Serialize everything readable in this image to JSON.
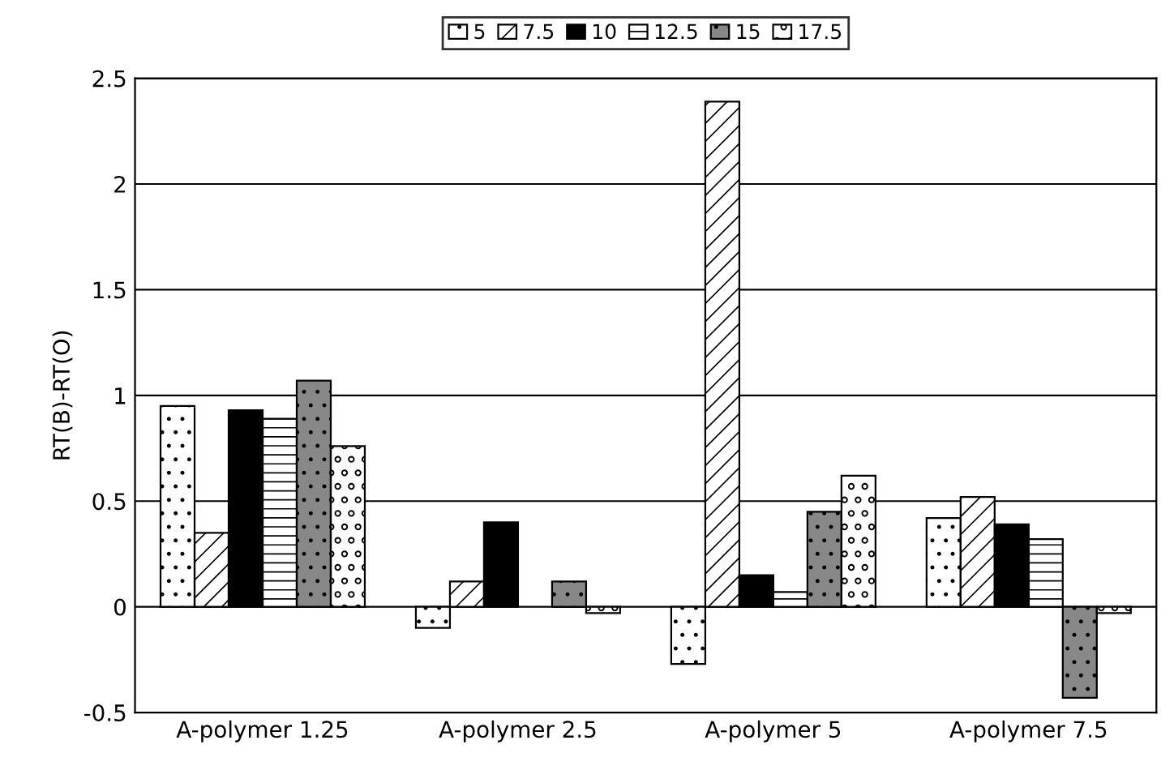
{
  "chart_data": {
    "type": "bar",
    "ylabel": "RT(B)-RT(O)",
    "categories": [
      "A-polymer 1.25",
      "A-polymer 2.5",
      "A-polymer 5",
      "A-polymer 7.5"
    ],
    "series": [
      {
        "name": "5",
        "color": "#ffffff",
        "values": [
          0.95,
          -0.1,
          -0.27,
          0.42
        ]
      },
      {
        "name": "7.5",
        "color": "#ffffff",
        "values": [
          0.35,
          0.12,
          2.39,
          0.52
        ]
      },
      {
        "name": "10",
        "color": "#000000",
        "values": [
          0.93,
          0.4,
          0.15,
          0.39
        ]
      },
      {
        "name": "12.5",
        "color": "#ffffff",
        "values": [
          0.89,
          null,
          0.07,
          0.32
        ]
      },
      {
        "name": "15",
        "color": "#888888",
        "values": [
          1.07,
          0.12,
          0.45,
          -0.43
        ]
      },
      {
        "name": "17.5",
        "color": "#ffffff",
        "values": [
          0.76,
          -0.03,
          0.62,
          -0.03
        ]
      }
    ],
    "ylim": [
      -0.5,
      2.5
    ],
    "yticks": [
      -0.5,
      0,
      0.5,
      1,
      1.5,
      2,
      2.5
    ],
    "grid": "y",
    "legend": "top"
  }
}
